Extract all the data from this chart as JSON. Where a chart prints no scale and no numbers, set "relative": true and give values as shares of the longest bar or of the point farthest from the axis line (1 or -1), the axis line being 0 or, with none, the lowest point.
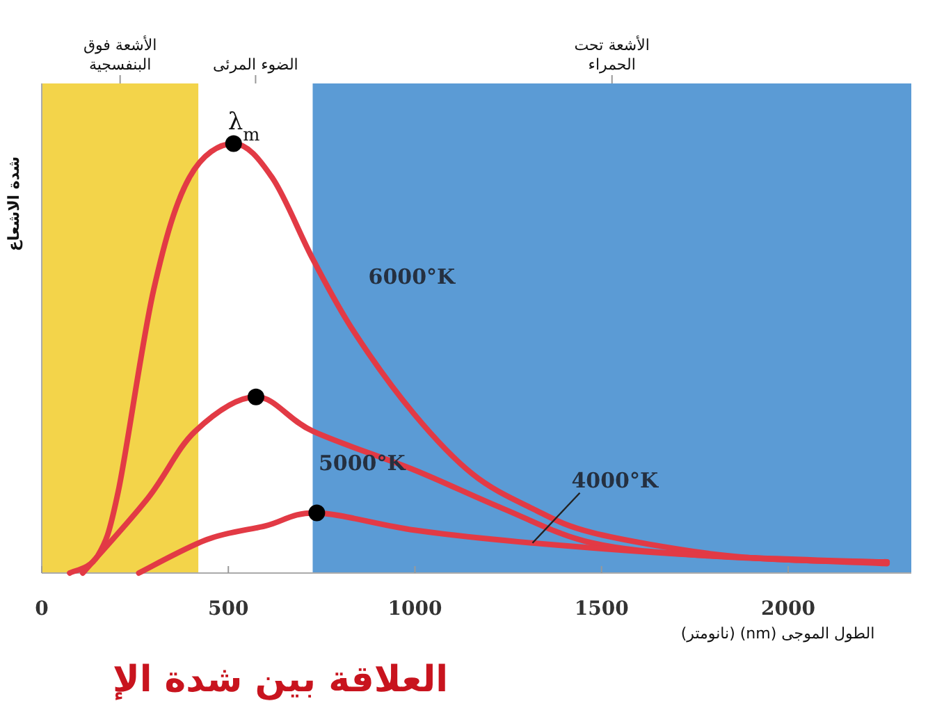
{
  "chart_data": {
    "type": "line",
    "relative": true,
    "xlabel": "الطول الموجى (nm) (نانومتر)",
    "ylabel": "شدة الاشعاع",
    "xlim": [
      0,
      2330
    ],
    "xticks": [
      0,
      500,
      1000,
      1500,
      2000
    ],
    "grid": false,
    "series": [
      {
        "name": "6000°K",
        "color": "#e23a45",
        "x": [
          75,
          150,
          205,
          300,
          395,
          514,
          618,
          727,
          838,
          998,
          1155,
          1315,
          1475,
          1790,
          2027,
          2265
        ],
        "values": [
          0,
          0.04,
          0.19,
          0.66,
          0.92,
          1.0,
          0.92,
          0.73,
          0.56,
          0.37,
          0.23,
          0.15,
          0.094,
          0.045,
          0.03,
          0.026
        ]
      },
      {
        "name": "5000°K",
        "color": "#e23a45",
        "x": [
          110,
          285,
          411,
          574,
          727,
          998,
          1236,
          1475,
          1790,
          2265
        ],
        "values": [
          0,
          0.175,
          0.33,
          0.41,
          0.33,
          0.24,
          0.15,
          0.07,
          0.04,
          0.022
        ]
      },
      {
        "name": "4000°K",
        "color": "#e23a45",
        "x": [
          260,
          443,
          600,
          737,
          998,
          1315,
          1790,
          2265
        ],
        "values": [
          0,
          0.078,
          0.11,
          0.14,
          0.1,
          0.07,
          0.04,
          0.025
        ]
      },
      {
        "type": "scatter",
        "color": "#000000",
        "marker": "circle",
        "x": [
          514,
          574,
          737
        ],
        "values": [
          1.0,
          0.41,
          0.14
        ]
      }
    ],
    "bands": [
      {
        "axis": "x",
        "from": 0,
        "to": 420,
        "label": "الأشعة فوق البنفسجية",
        "color": "#f3d44a"
      },
      {
        "axis": "x",
        "from": 420,
        "to": 726,
        "label": "الضوء المرئى",
        "color": "#ffffff"
      },
      {
        "axis": "x",
        "from": 726,
        "to": 2330,
        "label": "الأشعة تحت الحمراء",
        "color": "#5b9bd5"
      }
    ],
    "annotations": [
      {
        "text": "λ$_{m}$",
        "x": 514,
        "y": 1.0
      },
      "العلاقة بين شدة الإ"
    ]
  }
}
